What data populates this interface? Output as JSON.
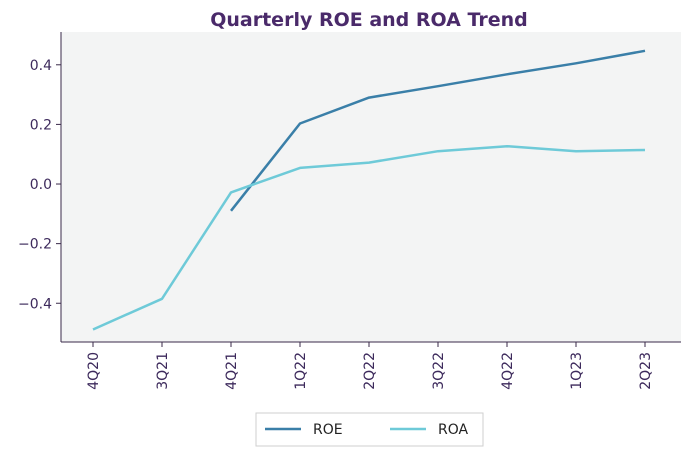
{
  "chart_data": {
    "type": "line",
    "title": "Quarterly ROE and ROA Trend",
    "xlabel": "",
    "ylabel": "",
    "categories": [
      "4Q20",
      "3Q21",
      "4Q21",
      "1Q22",
      "2Q22",
      "3Q22",
      "4Q22",
      "1Q23",
      "2Q23"
    ],
    "ylim": [
      -0.53,
      0.51
    ],
    "yticks": [
      -0.4,
      -0.2,
      0.0,
      0.2,
      0.4
    ],
    "ytick_labels": [
      "−0.4",
      "−0.2",
      "0.0",
      "0.2",
      "0.4"
    ],
    "grid": false,
    "legend_position": "bottom-center",
    "series": [
      {
        "name": "ROE",
        "color": "#3a7fa8",
        "values": [
          null,
          null,
          -0.09,
          0.203,
          0.29,
          0.328,
          0.368,
          0.405,
          0.447
        ]
      },
      {
        "name": "ROA",
        "color": "#6ecad8",
        "values": [
          -0.488,
          -0.385,
          -0.028,
          0.054,
          0.072,
          0.11,
          0.127,
          0.11,
          0.114
        ]
      }
    ]
  },
  "colors": {
    "title": "#4a2a6a",
    "tick_label": "#3d2a5c",
    "plot_bg": "#f3f4f4",
    "axis": "#3a2a4a"
  }
}
